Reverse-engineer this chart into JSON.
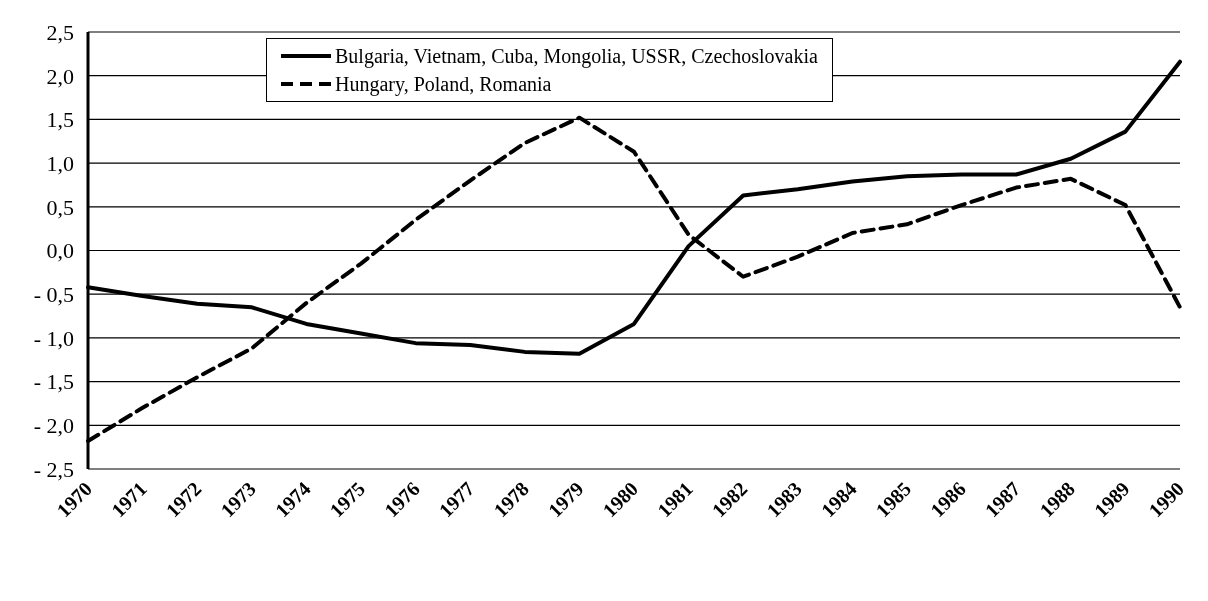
{
  "chart_data": {
    "type": "line",
    "categories": [
      "1970",
      "1971",
      "1972",
      "1973",
      "1974",
      "1975",
      "1976",
      "1977",
      "1978",
      "1979",
      "1980",
      "1981",
      "1982",
      "1983",
      "1984",
      "1985",
      "1986",
      "1987",
      "1988",
      "1989",
      "1990"
    ],
    "series": [
      {
        "name": "Bulgaria, Vietnam, Cuba, Mongolia, USSR, Czechoslovakia",
        "color": "#000000",
        "line_style": "solid",
        "values": [
          -0.42,
          -0.52,
          -0.61,
          -0.65,
          -0.84,
          -0.95,
          -1.06,
          -1.08,
          -1.16,
          -1.18,
          -0.84,
          0.05,
          0.63,
          0.7,
          0.79,
          0.85,
          0.87,
          0.87,
          1.05,
          1.36,
          2.16
        ]
      },
      {
        "name": "Hungary, Poland, Romania",
        "color": "#000000",
        "line_style": "dashed",
        "values": [
          -2.18,
          -1.8,
          -1.45,
          -1.12,
          -0.6,
          -0.15,
          0.35,
          0.8,
          1.23,
          1.52,
          1.13,
          0.18,
          -0.3,
          -0.07,
          0.2,
          0.3,
          0.52,
          0.72,
          0.82,
          0.52,
          -0.65
        ]
      }
    ],
    "ylim": [
      -2.5,
      2.5
    ],
    "yticks": [
      {
        "value": -2.5,
        "label": "- 2,5"
      },
      {
        "value": -2,
        "label": "- 2,0"
      },
      {
        "value": -1.5,
        "label": "- 1,5"
      },
      {
        "value": -1,
        "label": "- 1,0"
      },
      {
        "value": -0.5,
        "label": "- 0,5"
      },
      {
        "value": 0,
        "label": "0,0"
      },
      {
        "value": 0.5,
        "label": "0,5"
      },
      {
        "value": 1,
        "label": "1,0"
      },
      {
        "value": 1.5,
        "label": "1,5"
      },
      {
        "value": 2,
        "label": "2,0"
      },
      {
        "value": 2.5,
        "label": "2,5"
      }
    ],
    "grid": "y",
    "legend": "top",
    "marker": "none"
  }
}
